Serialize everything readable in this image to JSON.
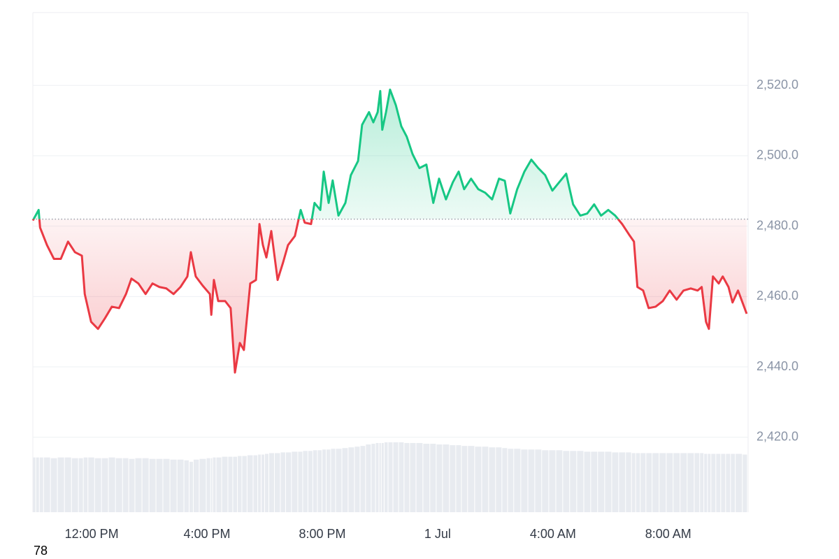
{
  "chart_data": {
    "type": "line",
    "x": [
      9.96,
      10.16,
      10.21,
      10.45,
      10.69,
      10.93,
      11.18,
      11.42,
      11.66,
      11.76,
      11.98,
      12.22,
      12.46,
      12.7,
      12.95,
      13.19,
      13.38,
      13.62,
      13.87,
      14.11,
      14.35,
      14.59,
      14.84,
      15.08,
      15.32,
      15.44,
      15.61,
      15.85,
      16.1,
      16.15,
      16.24,
      16.39,
      16.63,
      16.82,
      16.97,
      17.14,
      17.28,
      17.5,
      17.7,
      17.82,
      17.94,
      18.06,
      18.23,
      18.45,
      18.64,
      18.81,
      19.05,
      19.25,
      19.39,
      19.61,
      19.73,
      19.93,
      20.05,
      20.22,
      20.36,
      20.56,
      20.8,
      20.99,
      21.24,
      21.38,
      21.62,
      21.77,
      21.92,
      22.01,
      22.08,
      22.21,
      22.35,
      22.55,
      22.74,
      22.93,
      23.13,
      23.37,
      23.61,
      23.85,
      24.05,
      24.29,
      24.53,
      24.73,
      24.92,
      25.16,
      25.41,
      25.65,
      25.89,
      26.13,
      26.33,
      26.52,
      26.76,
      27.01,
      27.25,
      27.49,
      27.73,
      27.98,
      28.22,
      28.46,
      28.7,
      28.95,
      29.19,
      29.43,
      29.67,
      29.92,
      30.16,
      30.4,
      30.64,
      30.81,
      30.93,
      31.13,
      31.32,
      31.56,
      31.81,
      32.05,
      32.29,
      32.53,
      32.78,
      33.02,
      33.16,
      33.31,
      33.41,
      33.55,
      33.75,
      33.89,
      34.09,
      34.23,
      34.42,
      34.72
    ],
    "values": [
      2481.6,
      2484.6,
      2479.6,
      2474.6,
      2470.7,
      2470.7,
      2475.6,
      2472.6,
      2471.6,
      2460.7,
      2452.8,
      2450.8,
      2453.8,
      2457.1,
      2456.7,
      2460.7,
      2465.1,
      2463.7,
      2460.7,
      2463.7,
      2462.7,
      2462.3,
      2460.7,
      2462.7,
      2465.7,
      2472.6,
      2465.7,
      2463.1,
      2460.7,
      2454.8,
      2464.7,
      2458.7,
      2458.7,
      2456.7,
      2438.4,
      2446.8,
      2444.8,
      2463.7,
      2464.7,
      2480.6,
      2474.6,
      2471.1,
      2478.6,
      2464.7,
      2469.7,
      2474.6,
      2477.2,
      2484.6,
      2481.0,
      2480.6,
      2486.6,
      2484.6,
      2495.5,
      2486.6,
      2493.0,
      2483.0,
      2486.6,
      2494.5,
      2498.5,
      2508.8,
      2512.4,
      2509.5,
      2512.4,
      2518.4,
      2507.4,
      2512.4,
      2518.8,
      2514.4,
      2508.4,
      2505.4,
      2500.5,
      2496.5,
      2497.5,
      2486.6,
      2493.5,
      2487.6,
      2492.5,
      2495.5,
      2490.5,
      2493.5,
      2490.5,
      2489.5,
      2487.6,
      2493.5,
      2492.9,
      2483.6,
      2490.5,
      2495.5,
      2498.9,
      2496.5,
      2494.5,
      2490.1,
      2492.5,
      2494.9,
      2486.2,
      2483.0,
      2483.6,
      2486.2,
      2483.0,
      2484.6,
      2483.0,
      2480.6,
      2477.6,
      2475.6,
      2462.7,
      2461.7,
      2456.7,
      2457.1,
      2458.7,
      2461.7,
      2459.1,
      2461.7,
      2462.3,
      2461.7,
      2462.7,
      2452.8,
      2450.8,
      2465.7,
      2463.7,
      2465.7,
      2462.7,
      2458.3,
      2461.7,
      2455.1
    ],
    "volume": [
      76,
      76,
      76,
      76,
      75,
      76,
      76,
      75,
      75,
      76,
      76,
      75,
      75,
      76,
      75,
      75,
      74,
      75,
      75,
      74,
      74,
      74,
      73,
      73,
      72,
      70,
      73,
      74,
      75,
      75,
      76,
      76,
      77,
      77,
      77,
      78,
      78,
      79,
      79,
      80,
      80,
      81,
      82,
      82,
      83,
      83,
      84,
      84,
      85,
      85,
      86,
      86,
      87,
      87,
      88,
      88,
      89,
      90,
      91,
      92,
      94,
      95,
      96,
      96,
      96,
      97,
      97,
      97,
      97,
      96,
      96,
      96,
      95,
      95,
      94,
      94,
      93,
      93,
      92,
      92,
      91,
      91,
      90,
      90,
      89,
      88,
      88,
      87,
      87,
      87,
      86,
      86,
      86,
      85,
      85,
      85,
      84,
      84,
      84,
      84,
      83,
      83,
      83,
      82,
      82,
      82,
      82,
      82,
      82,
      82,
      82,
      82,
      82,
      82,
      82,
      81,
      81,
      81,
      81,
      81,
      81,
      81,
      81,
      80
    ],
    "baseline": 2482.0,
    "colors": {
      "up": "#16c784",
      "down": "#ea3943",
      "volume": "#e8ebf0"
    },
    "xlim": [
      9.96,
      34.77
    ],
    "ylim": [
      2398.7,
      2540.7
    ],
    "yticks": [
      {
        "value": 2420,
        "label": "2,420.0"
      },
      {
        "value": 2440,
        "label": "2,440.0"
      },
      {
        "value": 2460,
        "label": "2,460.0"
      },
      {
        "value": 2480,
        "label": "2,480.0"
      },
      {
        "value": 2500,
        "label": "2,500.0"
      },
      {
        "value": 2520,
        "label": "2,520.0"
      }
    ],
    "xticks": [
      {
        "value": 12,
        "label": "12:00 PM"
      },
      {
        "value": 16,
        "label": "4:00 PM"
      },
      {
        "value": 20,
        "label": "8:00 PM"
      },
      {
        "value": 24,
        "label": "1 Jul"
      },
      {
        "value": 28,
        "label": "4:00 AM"
      },
      {
        "value": 32,
        "label": "8:00 AM"
      }
    ],
    "grid": true,
    "annotation": "78"
  }
}
